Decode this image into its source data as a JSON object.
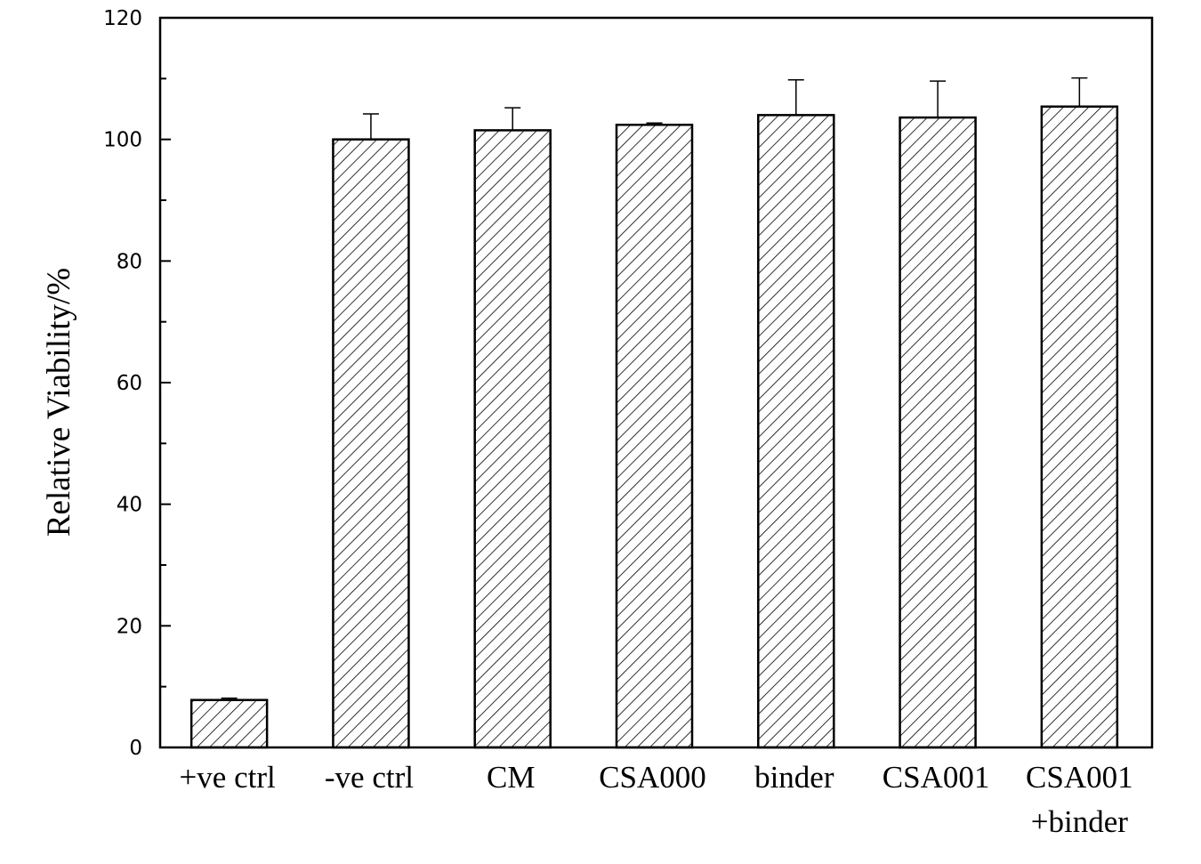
{
  "chart_data": {
    "type": "bar",
    "title": "",
    "xlabel": "",
    "ylabel": "Relative Viability/%",
    "ylim": [
      0,
      120
    ],
    "yticks": [
      "0",
      "20",
      "40",
      "60",
      "80",
      "100",
      "120"
    ],
    "categories": [
      [
        "+ve ctrl"
      ],
      [
        "-ve ctrl"
      ],
      [
        "CM"
      ],
      [
        "CSA000"
      ],
      [
        "binder"
      ],
      [
        "CSA001"
      ],
      [
        "CSA001",
        "+binder"
      ]
    ],
    "values": [
      7.8,
      100.0,
      101.5,
      102.4,
      104.0,
      103.6,
      105.4
    ],
    "errors": [
      0.3,
      4.2,
      3.7,
      0.3,
      5.8,
      6.0,
      4.7
    ],
    "bar_fill": "hatched",
    "bar_color": "#000000",
    "grid": false,
    "legend": "none"
  }
}
